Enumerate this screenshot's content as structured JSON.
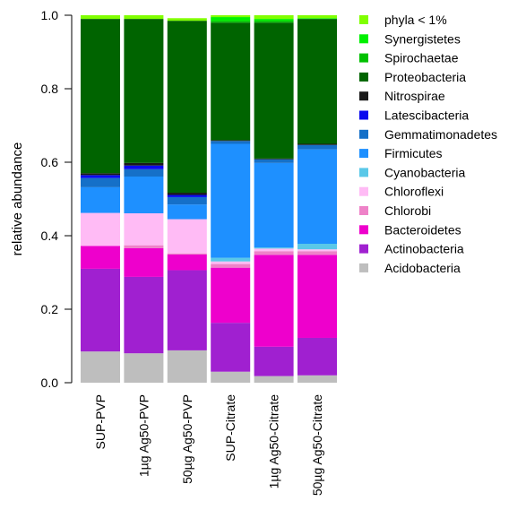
{
  "chart_data": {
    "type": "bar",
    "stacked": true,
    "ylabel": "relative abundance",
    "xlabel": "",
    "ylim": [
      0,
      1
    ],
    "yticks": [
      "0.0",
      "0.2",
      "0.4",
      "0.6",
      "0.8",
      "1.0"
    ],
    "ytick_values": [
      0,
      0.2,
      0.4,
      0.6,
      0.8,
      1.0
    ],
    "legend_position": "right",
    "categories": [
      "SUP-PVP",
      "1µg Ag50-PVP",
      "50µg Ag50-PVP",
      "SUP-Citrate",
      "1µg Ag50-Citrate",
      "50µg Ag50-Citrate"
    ],
    "series": [
      {
        "name": "Acidobacteria",
        "color": "#bebebe",
        "values": [
          0.085,
          0.08,
          0.088,
          0.03,
          0.018,
          0.02
        ]
      },
      {
        "name": "Actinobacteria",
        "color": "#a020d0",
        "values": [
          0.225,
          0.208,
          0.218,
          0.133,
          0.08,
          0.102
        ]
      },
      {
        "name": "Bacteroidetes",
        "color": "#ee00cc",
        "values": [
          0.062,
          0.078,
          0.043,
          0.15,
          0.25,
          0.226
        ]
      },
      {
        "name": "Chlorobi",
        "color": "#ee82c8",
        "values": [
          0.0,
          0.008,
          0.003,
          0.01,
          0.01,
          0.01
        ]
      },
      {
        "name": "Chloroflexi",
        "color": "#ffbbf5",
        "values": [
          0.09,
          0.087,
          0.093,
          0.007,
          0.007,
          0.005
        ]
      },
      {
        "name": "Cyanobacteria",
        "color": "#5ac8e8",
        "values": [
          0.0,
          0.0,
          0.0,
          0.01,
          0.003,
          0.015
        ]
      },
      {
        "name": "Firmicutes",
        "color": "#1e90ff",
        "values": [
          0.07,
          0.1,
          0.04,
          0.31,
          0.23,
          0.257
        ]
      },
      {
        "name": "Gemmatimonadetes",
        "color": "#1570c8",
        "values": [
          0.025,
          0.02,
          0.02,
          0.008,
          0.01,
          0.012
        ]
      },
      {
        "name": "Latescibacteria",
        "color": "#0a0aee",
        "values": [
          0.008,
          0.01,
          0.006,
          0.0,
          0.0,
          0.0
        ]
      },
      {
        "name": "Nitrospirae",
        "color": "#1a1a1a",
        "values": [
          0.005,
          0.007,
          0.006,
          0.002,
          0.002,
          0.003
        ]
      },
      {
        "name": "Proteobacteria",
        "color": "#006400",
        "values": [
          0.42,
          0.392,
          0.468,
          0.32,
          0.37,
          0.34
        ]
      },
      {
        "name": "Spirochaetae",
        "color": "#00c000",
        "values": [
          0.0,
          0.0,
          0.0,
          0.005,
          0.005,
          0.0
        ]
      },
      {
        "name": "Synergistetes",
        "color": "#00f000",
        "values": [
          0.0,
          0.0,
          0.0,
          0.01,
          0.005,
          0.002
        ]
      },
      {
        "name": "phyla < 1%",
        "color": "#80ff00",
        "values": [
          0.01,
          0.01,
          0.007,
          0.005,
          0.01,
          0.008
        ]
      }
    ]
  }
}
